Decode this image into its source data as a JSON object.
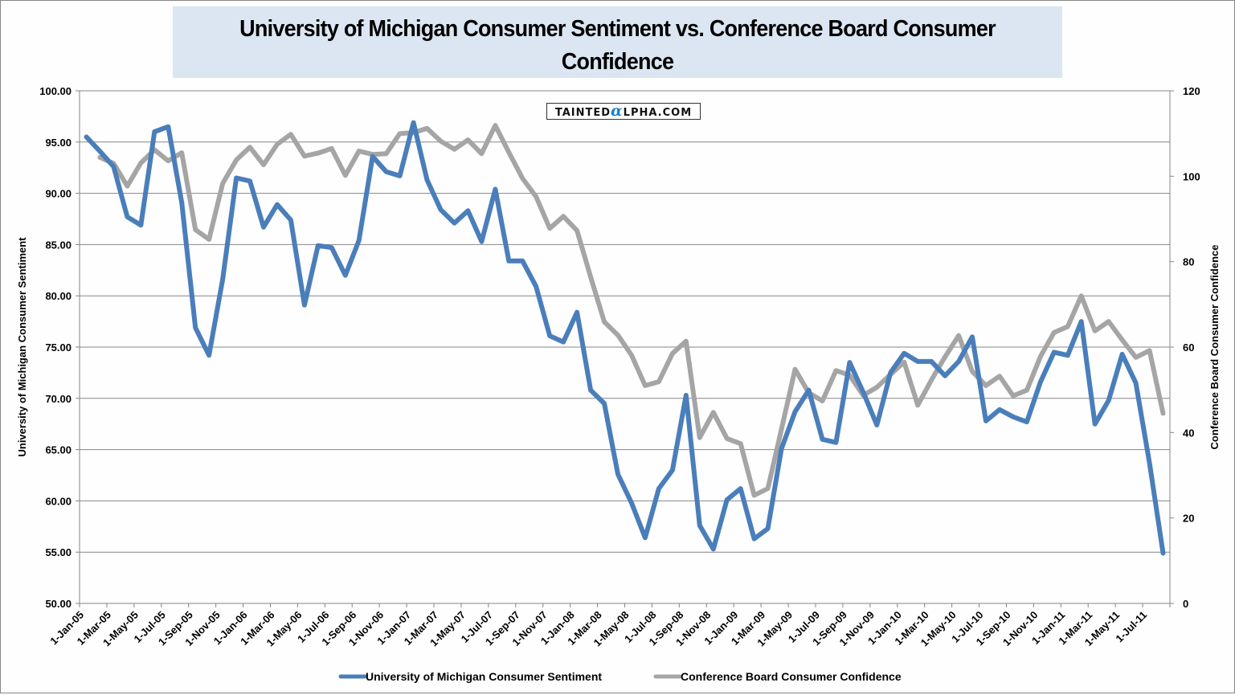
{
  "chart_data": {
    "type": "line",
    "title": "University of Michigan Consumer Sentiment vs. Conference Board Consumer Confidence",
    "watermark": {
      "prefix": "Tainted",
      "alpha": "α",
      "suffix": "lpha.com"
    },
    "xlabel": "",
    "ylabel": "University of Michigan Consumer Sentiment",
    "y2label": "Conference Board Consumer Confidence",
    "ylim": [
      50,
      100
    ],
    "y2lim": [
      0,
      120
    ],
    "yticks": [
      "50.00",
      "55.00",
      "60.00",
      "65.00",
      "70.00",
      "75.00",
      "80.00",
      "85.00",
      "90.00",
      "95.00",
      "100.00"
    ],
    "y2ticks": [
      "0",
      "20",
      "40",
      "60",
      "80",
      "100",
      "120"
    ],
    "grid": true,
    "legend": "bottom",
    "x_tick_labels": [
      "1-Jan-05",
      "1-Mar-05",
      "1-May-05",
      "1-Jul-05",
      "1-Sep-05",
      "1-Nov-05",
      "1-Jan-06",
      "1-Mar-06",
      "1-May-06",
      "1-Jul-06",
      "1-Sep-06",
      "1-Nov-06",
      "1-Jan-07",
      "1-Mar-07",
      "1-May-07",
      "1-Jul-07",
      "1-Sep-07",
      "1-Nov-07",
      "1-Jan-08",
      "1-Mar-08",
      "1-May-08",
      "1-Jul-08",
      "1-Sep-08",
      "1-Nov-08",
      "1-Jan-09",
      "1-Mar-09",
      "1-May-09",
      "1-Jul-09",
      "1-Sep-09",
      "1-Nov-09",
      "1-Jan-10",
      "1-Mar-10",
      "1-May-10",
      "1-Jul-10",
      "1-Sep-10",
      "1-Nov-10",
      "1-Jan-11",
      "1-Mar-11",
      "1-May-11",
      "1-Jul-11"
    ],
    "x_start": "Jan-05",
    "x_months": 80,
    "series": [
      {
        "name": "University of Michigan Consumer Sentiment",
        "axis": "left",
        "color": "#4a7ebb",
        "start_month_index": 0,
        "values": [
          95.5,
          94.1,
          92.6,
          87.7,
          86.9,
          96.0,
          96.5,
          89.1,
          76.9,
          74.2,
          81.6,
          91.5,
          91.2,
          86.7,
          88.9,
          87.4,
          79.1,
          84.9,
          84.7,
          82.0,
          85.4,
          93.6,
          92.1,
          91.7,
          96.9,
          91.3,
          88.4,
          87.1,
          88.3,
          85.3,
          90.4,
          83.4,
          83.4,
          80.9,
          76.1,
          75.5,
          78.4,
          70.8,
          69.5,
          62.6,
          59.8,
          56.4,
          61.2,
          63.0,
          70.3,
          57.6,
          55.3,
          60.1,
          61.2,
          56.3,
          57.3,
          65.1,
          68.7,
          70.8,
          66.0,
          65.7,
          73.5,
          70.6,
          67.4,
          72.5,
          74.4,
          73.6,
          73.6,
          72.2,
          73.6,
          76.0,
          67.8,
          68.9,
          68.2,
          67.7,
          71.6,
          74.5,
          74.2,
          77.5,
          67.5,
          69.8,
          74.3,
          71.5,
          63.7,
          54.9
        ]
      },
      {
        "name": "Conference Board Consumer Confidence",
        "axis": "right",
        "color": "#a5a5a5",
        "start_month_index": 1,
        "values": [
          104.4,
          103.0,
          97.7,
          103.1,
          106.2,
          103.6,
          105.5,
          87.5,
          85.2,
          98.3,
          103.8,
          106.8,
          102.7,
          107.5,
          109.8,
          104.7,
          105.4,
          106.5,
          100.2,
          105.9,
          105.1,
          105.3,
          110.0,
          110.2,
          111.2,
          108.2,
          106.3,
          108.5,
          105.3,
          111.9,
          105.6,
          99.5,
          95.2,
          87.8,
          90.6,
          87.3,
          76.4,
          65.9,
          62.8,
          58.1,
          51.0,
          51.9,
          58.5,
          61.4,
          38.8,
          44.7,
          38.6,
          37.4,
          25.3,
          26.9,
          40.8,
          54.8,
          49.3,
          47.4,
          54.5,
          53.4,
          48.7,
          50.6,
          53.6,
          56.5,
          46.4,
          52.3,
          57.7,
          62.7,
          54.3,
          51.0,
          53.2,
          48.6,
          49.9,
          57.8,
          63.4,
          64.8,
          72.0,
          63.8,
          66.0,
          61.7,
          57.6,
          59.2,
          44.5
        ]
      }
    ]
  }
}
